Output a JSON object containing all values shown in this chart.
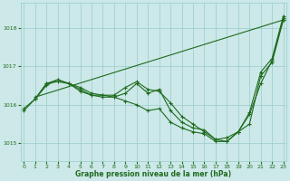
{
  "xlabel": "Graphe pression niveau de la mer (hPa)",
  "background_color": "#cce8e8",
  "grid_color": "#99cccc",
  "line_color": "#1e6b1e",
  "marker": "+",
  "markersize": 3.5,
  "linewidth": 0.8,
  "ylim": [
    1014.55,
    1018.65
  ],
  "xlim": [
    -0.3,
    23.3
  ],
  "yticks": [
    1015,
    1016,
    1017,
    1018
  ],
  "xticks": [
    0,
    1,
    2,
    3,
    4,
    5,
    6,
    7,
    8,
    9,
    10,
    11,
    12,
    13,
    14,
    15,
    16,
    17,
    18,
    19,
    20,
    21,
    22,
    23
  ],
  "series_with_markers": [
    {
      "x": [
        0,
        1,
        2,
        3,
        4,
        5,
        6,
        7,
        8,
        9,
        10,
        11,
        12,
        13,
        14,
        15,
        16,
        17,
        18,
        19,
        20,
        21,
        22,
        23
      ],
      "y": [
        1015.85,
        1016.15,
        1016.55,
        1016.6,
        1016.55,
        1016.35,
        1016.25,
        1016.2,
        1016.2,
        1016.1,
        1016.0,
        1015.85,
        1015.9,
        1015.55,
        1015.4,
        1015.3,
        1015.25,
        1015.05,
        1015.05,
        1015.3,
        1015.5,
        1016.75,
        1017.1,
        1018.2
      ]
    },
    {
      "x": [
        1,
        2,
        3,
        4,
        5,
        6,
        7,
        8,
        9,
        10,
        11,
        12,
        13,
        14,
        15,
        16,
        17,
        18,
        19,
        20,
        21,
        22,
        23
      ],
      "y": [
        1016.15,
        1016.55,
        1016.65,
        1016.55,
        1016.4,
        1016.25,
        1016.25,
        1016.2,
        1016.3,
        1016.55,
        1016.3,
        1016.4,
        1015.85,
        1015.55,
        1015.4,
        1015.35,
        1015.1,
        1015.05,
        1015.3,
        1015.75,
        1016.55,
        1017.15,
        1018.25
      ]
    },
    {
      "x": [
        0,
        1,
        2,
        3,
        4,
        5,
        6,
        7,
        8,
        9,
        10,
        11,
        12,
        13,
        14,
        15,
        16,
        17,
        18,
        19,
        20,
        21,
        22,
        23
      ],
      "y": [
        1015.9,
        1016.15,
        1016.5,
        1016.65,
        1016.55,
        1016.45,
        1016.3,
        1016.25,
        1016.25,
        1016.45,
        1016.6,
        1016.4,
        1016.35,
        1016.05,
        1015.7,
        1015.5,
        1015.3,
        1015.1,
        1015.15,
        1015.3,
        1015.8,
        1016.85,
        1017.2,
        1018.3
      ]
    }
  ],
  "series_straight": [
    {
      "x": [
        1,
        23
      ],
      "y": [
        1016.2,
        1018.2
      ]
    }
  ]
}
